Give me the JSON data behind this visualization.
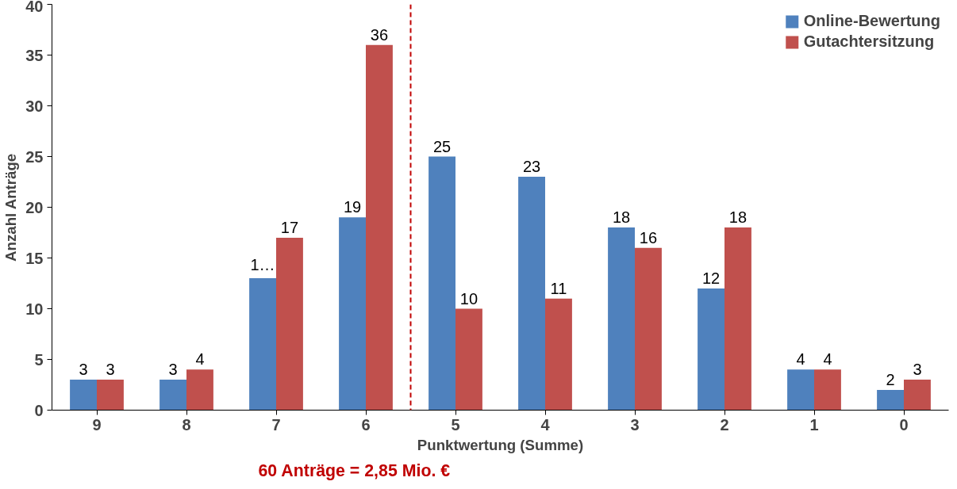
{
  "chart_data": {
    "type": "bar",
    "x": [
      9,
      8,
      7,
      6,
      5,
      4,
      3,
      2,
      1,
      0
    ],
    "xlim": [
      9.5,
      -0.5
    ],
    "xticks": [
      9,
      8,
      7,
      6,
      5,
      4,
      3,
      2,
      1,
      0
    ],
    "ylim": [
      0,
      40
    ],
    "yticks": [
      0,
      5,
      10,
      15,
      20,
      25,
      30,
      35,
      40
    ],
    "xlabel": "Punktwertung (Summe)",
    "ylabel": "Anzahl Anträge",
    "series": [
      {
        "name": "Online-Bewertung",
        "color": "#4f81bd",
        "values": [
          3,
          3,
          13,
          19,
          25,
          23,
          18,
          12,
          4,
          2
        ],
        "value_labels": [
          "3",
          "3",
          "1…",
          "19",
          "25",
          "23",
          "18",
          "12",
          "4",
          "2"
        ]
      },
      {
        "name": "Gutachtersitzung",
        "color": "#c0504d",
        "values": [
          3,
          4,
          17,
          36,
          10,
          11,
          16,
          18,
          4,
          3
        ],
        "value_labels": [
          "3",
          "4",
          "17",
          "36",
          "10",
          "11",
          "16",
          "18",
          "4",
          "3"
        ]
      }
    ],
    "ref_lines": [
      {
        "axis": "x",
        "value": 5.5,
        "color": "#c00000",
        "line_style": "dashed"
      }
    ],
    "annotations": [
      "60 Anträge = 2,85 Mio. €"
    ],
    "legend": "top right",
    "grid": false
  }
}
